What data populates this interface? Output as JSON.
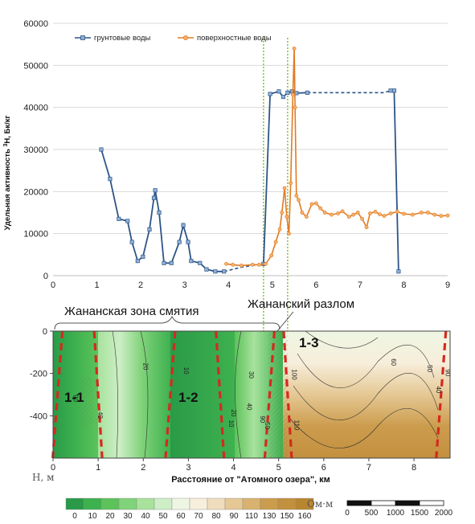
{
  "chart_data": [
    {
      "type": "line",
      "ylabel_prefix": "Удельная активность ",
      "ylabel_sup": "3",
      "ylabel_suffix": "H, Бк/кг",
      "xlim": [
        0,
        9
      ],
      "ylim": [
        0,
        60000
      ],
      "xticks": [
        "0",
        "1",
        "2",
        "3",
        "4",
        "5",
        "6",
        "7",
        "8",
        "9"
      ],
      "yticks": [
        "0",
        "10000",
        "20000",
        "30000",
        "40000",
        "50000",
        "60000"
      ],
      "grid": true,
      "legend_position": "top-left",
      "series": [
        {
          "name": "грунтовые воды",
          "color": "#2e5487",
          "points": [
            [
              1.1,
              30000
            ],
            [
              1.3,
              23000
            ],
            [
              1.5,
              13500
            ],
            [
              1.7,
              13000
            ],
            [
              1.8,
              8000
            ],
            [
              1.93,
              3500
            ],
            [
              2.05,
              4500
            ],
            [
              2.2,
              11000
            ],
            [
              2.3,
              18500
            ],
            [
              2.33,
              20300
            ],
            [
              2.42,
              15000
            ],
            [
              2.53,
              3000
            ],
            [
              2.7,
              3000
            ],
            [
              2.88,
              8000
            ],
            [
              2.97,
              12000
            ],
            [
              3.08,
              8000
            ],
            [
              3.15,
              3500
            ],
            [
              3.35,
              3000
            ],
            [
              3.5,
              1500
            ],
            [
              3.7,
              1000
            ],
            [
              3.9,
              1000
            ]
          ],
          "dashed_segments": [
            [
              [
                3.9,
                1000
              ],
              [
                4.3,
                2000
              ],
              [
                4.6,
                2500
              ],
              [
                4.8,
                2800
              ]
            ],
            [
              [
                5.8,
                43500
              ],
              [
                6.5,
                43500
              ],
              [
                7.1,
                43500
              ],
              [
                7.55,
                43500
              ],
              [
                7.7,
                44000
              ]
            ]
          ],
          "tail": [
            [
              4.8,
              2800
            ],
            [
              4.95,
              43200
            ],
            [
              5.15,
              43800
            ],
            [
              5.25,
              42500
            ],
            [
              5.35,
              43500
            ],
            [
              5.45,
              43800
            ],
            [
              5.55,
              43400
            ],
            [
              5.8,
              43500
            ]
          ],
          "drop": [
            [
              7.7,
              44000
            ],
            [
              7.78,
              44000
            ],
            [
              7.88,
              1000
            ]
          ]
        },
        {
          "name": "поверхностные воды",
          "color": "#e07b24",
          "points": [
            [
              3.95,
              2800
            ],
            [
              4.1,
              2600
            ],
            [
              4.3,
              2400
            ],
            [
              4.55,
              2600
            ],
            [
              4.7,
              2600
            ],
            [
              4.85,
              2800
            ],
            [
              4.98,
              4800
            ],
            [
              5.08,
              8000
            ],
            [
              5.17,
              11000
            ],
            [
              5.22,
              15000
            ],
            [
              5.28,
              20800
            ],
            [
              5.33,
              14000
            ],
            [
              5.38,
              10000
            ],
            [
              5.42,
              22000
            ],
            [
              5.47,
              43000
            ],
            [
              5.5,
              54000
            ],
            [
              5.52,
              40000
            ],
            [
              5.55,
              19000
            ],
            [
              5.6,
              18000
            ],
            [
              5.68,
              15000
            ],
            [
              5.78,
              14000
            ],
            [
              5.9,
              17000
            ],
            [
              6.0,
              17200
            ],
            [
              6.1,
              16000
            ],
            [
              6.2,
              15000
            ],
            [
              6.35,
              14500
            ],
            [
              6.5,
              14800
            ],
            [
              6.6,
              15300
            ],
            [
              6.75,
              14000
            ],
            [
              6.85,
              14500
            ],
            [
              6.95,
              15000
            ],
            [
              7.05,
              13500
            ],
            [
              7.15,
              11500
            ],
            [
              7.23,
              14800
            ],
            [
              7.35,
              15200
            ],
            [
              7.45,
              14600
            ],
            [
              7.55,
              14200
            ],
            [
              7.7,
              14800
            ],
            [
              7.85,
              15200
            ],
            [
              8.0,
              14700
            ],
            [
              8.2,
              14500
            ],
            [
              8.4,
              15000
            ],
            [
              8.55,
              15000
            ],
            [
              8.7,
              14500
            ],
            [
              8.85,
              14200
            ],
            [
              9.0,
              14300
            ]
          ]
        }
      ],
      "vertical_markers": [
        4.8,
        5.35
      ]
    },
    {
      "type": "heatmap",
      "title_labels": {
        "zone": "Жананская зона смятия",
        "fault": "Жананский разлом",
        "zone_11": "1-1",
        "zone_12": "1-2",
        "zone_13": "1-3"
      },
      "xlabel": "Расстояние от \"Атомного озера\", км",
      "ylabel": "Н, м",
      "xlim": [
        0,
        8.8
      ],
      "ylim": [
        -600,
        0
      ],
      "xticks": [
        "0",
        "1",
        "2",
        "3",
        "4",
        "5",
        "6",
        "7",
        "8"
      ],
      "yticks": [
        "0",
        "-200",
        "-400"
      ],
      "isolines": [
        "90",
        "20",
        "10",
        "40",
        "10",
        "20",
        "40",
        "30",
        "100",
        "90",
        "50",
        "110",
        "60",
        "50",
        "90",
        "40"
      ],
      "fault_lines": [
        0.1,
        1.0,
        2.6,
        3.7,
        4.8,
        5.2,
        8.6
      ],
      "colorbar": {
        "unit": "Ом·м",
        "labels": [
          "0",
          "10",
          "20",
          "30",
          "40",
          "50",
          "60",
          "70",
          "80",
          "90",
          "110",
          "130",
          "150",
          "160"
        ],
        "colors": [
          "#2a9a48",
          "#3eb14f",
          "#5cc35a",
          "#80d37a",
          "#a8e29d",
          "#cdeec6",
          "#eef6e3",
          "#f7eedb",
          "#efddbd",
          "#e5c894",
          "#d9b26f",
          "#cc9c4d",
          "#c3903e",
          "#b9862f"
        ]
      },
      "scalebar": {
        "labels": [
          "0",
          "500",
          "1000",
          "1500",
          "2000"
        ]
      }
    }
  ]
}
